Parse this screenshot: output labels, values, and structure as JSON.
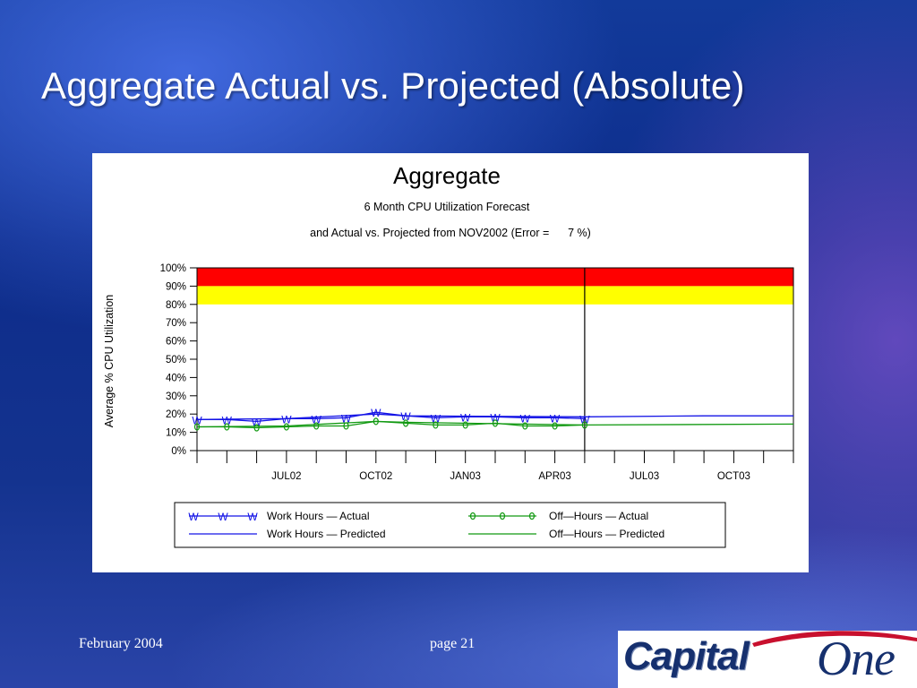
{
  "slide": {
    "title": "Aggregate Actual vs. Projected (Absolute)",
    "footer_date": "February 2004",
    "footer_page": "page 21",
    "logo_text": "CapitalOne"
  },
  "colors": {
    "work_hours": "#1414e6",
    "off_hours": "#119911",
    "critical_band": "#ff0000",
    "warning_band": "#ffff00",
    "slide_background": "#0f3392"
  },
  "chart_data": {
    "type": "line",
    "title": "Aggregate",
    "subtitle_1": "6 Month CPU Utilization Forecast",
    "subtitle_2": "and Actual vs. Projected from NOV2002 (Error =      7 %)",
    "ylabel": "Average % CPU Utilization",
    "xlabel": "",
    "ylim": [
      0,
      100
    ],
    "yticks": [
      "0%",
      "10%",
      "20%",
      "30%",
      "40%",
      "50%",
      "60%",
      "70%",
      "80%",
      "90%",
      "100%"
    ],
    "xlim": [
      "2002-04",
      "2003-12"
    ],
    "xticks": [
      {
        "label": "JUL02",
        "x": "2002-07"
      },
      {
        "label": "OCT02",
        "x": "2002-10"
      },
      {
        "label": "JAN03",
        "x": "2003-01"
      },
      {
        "label": "APR03",
        "x": "2003-04"
      },
      {
        "label": "JUL03",
        "x": "2003-07"
      },
      {
        "label": "OCT03",
        "x": "2003-10"
      }
    ],
    "forecast_start": "2003-05",
    "bands": [
      {
        "from": 90,
        "to": 100,
        "color": "#ff0000"
      },
      {
        "from": 80,
        "to": 90,
        "color": "#ffff00"
      }
    ],
    "series": [
      {
        "name": "Work Hours",
        "kind": "Actual",
        "x": [
          "2002-04",
          "2002-05",
          "2002-06",
          "2002-07",
          "2002-08",
          "2002-09",
          "2002-10",
          "2002-11",
          "2002-12",
          "2003-01",
          "2003-02",
          "2003-03",
          "2003-04",
          "2003-05"
        ],
        "values": [
          17,
          17,
          16,
          17.5,
          17.5,
          18,
          21,
          19,
          18,
          18.5,
          18.5,
          18,
          18,
          17.5
        ]
      },
      {
        "name": "Work Hours",
        "kind": "Predicted",
        "x": [
          "2002-04",
          "2002-07",
          "2002-10",
          "2002-11",
          "2003-05",
          "2003-09",
          "2003-12"
        ],
        "values": [
          17,
          17.5,
          20,
          19,
          18.5,
          19,
          19
        ]
      },
      {
        "name": "Off-Hours",
        "kind": "Actual",
        "x": [
          "2002-04",
          "2002-05",
          "2002-06",
          "2002-07",
          "2002-08",
          "2002-09",
          "2002-10",
          "2002-11",
          "2002-12",
          "2003-01",
          "2003-02",
          "2003-03",
          "2003-04",
          "2003-05"
        ],
        "values": [
          13,
          13,
          12.5,
          13,
          13.5,
          13.5,
          16,
          15,
          14,
          14,
          15,
          13.5,
          13.5,
          14
        ]
      },
      {
        "name": "Off-Hours",
        "kind": "Predicted",
        "x": [
          "2002-04",
          "2002-07",
          "2002-10",
          "2002-11",
          "2003-05",
          "2003-12"
        ],
        "values": [
          13,
          13.5,
          16,
          15.5,
          14,
          14.5
        ]
      }
    ],
    "legend": [
      {
        "marker": "W",
        "label": "Work Hours — Actual",
        "series": 0
      },
      {
        "marker": "",
        "label": "Work Hours — Predicted",
        "series": 1
      },
      {
        "marker": "0",
        "label": "Off—Hours — Actual",
        "series": 2
      },
      {
        "marker": "",
        "label": "Off—Hours — Predicted",
        "series": 3
      }
    ],
    "legend_position": "bottom",
    "grid": false
  }
}
